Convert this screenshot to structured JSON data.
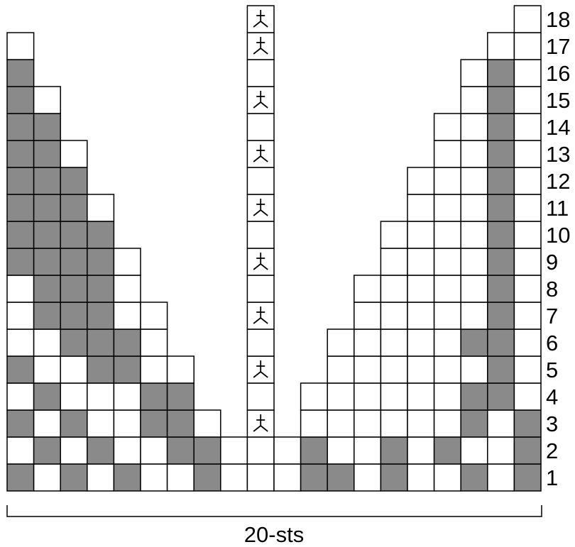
{
  "chart": {
    "stitch_count": 20,
    "row_count": 18,
    "row_labels": [
      "1",
      "2",
      "3",
      "4",
      "5",
      "6",
      "7",
      "8",
      "9",
      "10",
      "11",
      "12",
      "13",
      "14",
      "15",
      "16",
      "17",
      "18"
    ],
    "width_label": "20-sts",
    "center_symbol_icon": "decrease-symbol-icon",
    "center_symbol_rows": [
      3,
      5,
      7,
      9,
      11,
      13,
      15,
      17,
      18
    ],
    "colors": {
      "filled": "#8a8a8a",
      "empty": "#ffffff",
      "grid": "#000000"
    },
    "grid_rows": [
      "G.G.G..G...GG.G..G.G",
      ".G.G..GG...G..G.G..G",
      "G.G..GG..........G.G",
      ".G...GG..........GG.",
      "G..GG.............G.",
      "..GGG............GG.",
      ".GGG..............G.",
      ".GGG..............G.",
      "GGGG..............G.",
      "GGGG..............G.",
      "GGG...............G.",
      "GGG...............G.",
      "GG................G.",
      "GG................G.",
      "G.................G.",
      "G.................G.",
      "....................",
      "...................."
    ]
  }
}
